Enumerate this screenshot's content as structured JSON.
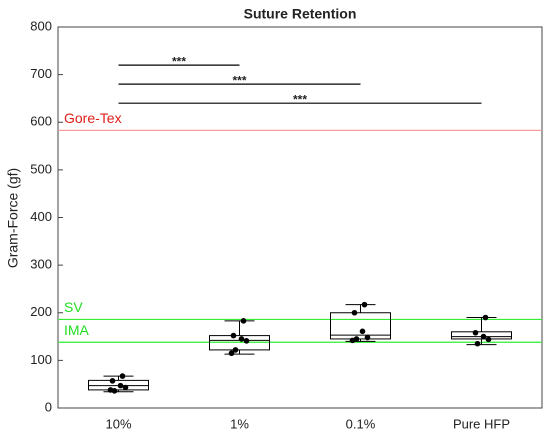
{
  "chart_data": {
    "type": "box",
    "title": "Suture Retention",
    "y_label": "Gram-Force (gf)",
    "categories": [
      "10%",
      "1%",
      "0.1%",
      "Pure HFP"
    ],
    "boxes": [
      {
        "whisker_low": 34,
        "q1": 38,
        "median": 47,
        "q3": 58,
        "whisker_high": 67,
        "points": [
          67,
          57,
          47,
          43,
          36,
          38
        ]
      },
      {
        "whisker_low": 113,
        "q1": 122,
        "median": 142,
        "q3": 152,
        "whisker_high": 183,
        "points": [
          183,
          152,
          145,
          141,
          122,
          115
        ]
      },
      {
        "whisker_low": 140,
        "q1": 145,
        "median": 153,
        "q3": 200,
        "whisker_high": 217,
        "points": [
          217,
          200,
          161,
          148,
          145,
          142
        ]
      },
      {
        "whisker_low": 133,
        "q1": 145,
        "median": 150,
        "q3": 160,
        "whisker_high": 190,
        "points": [
          190,
          158,
          150,
          144,
          135
        ]
      }
    ],
    "box_color": "#000000",
    "point_color": "#000000",
    "reference_lines": [
      {
        "label": "Gore-Tex",
        "value": 583,
        "color": "#f4a0a0",
        "label_color": "#e0201b"
      },
      {
        "label": "SV",
        "value": 186,
        "color": "#33ee33",
        "label_color": "#22dd22"
      },
      {
        "label": "IMA",
        "value": 138,
        "color": "#33ee33",
        "label_color": "#22dd22"
      }
    ],
    "significance": [
      {
        "from": 0,
        "to": 1,
        "value": 720,
        "label": "***"
      },
      {
        "from": 0,
        "to": 2,
        "value": 680,
        "label": "***"
      },
      {
        "from": 0,
        "to": 3,
        "value": 640,
        "label": "***"
      }
    ],
    "ylim": [
      0,
      800
    ],
    "yticks": [
      0,
      100,
      200,
      300,
      400,
      500,
      600,
      700,
      800
    ]
  }
}
